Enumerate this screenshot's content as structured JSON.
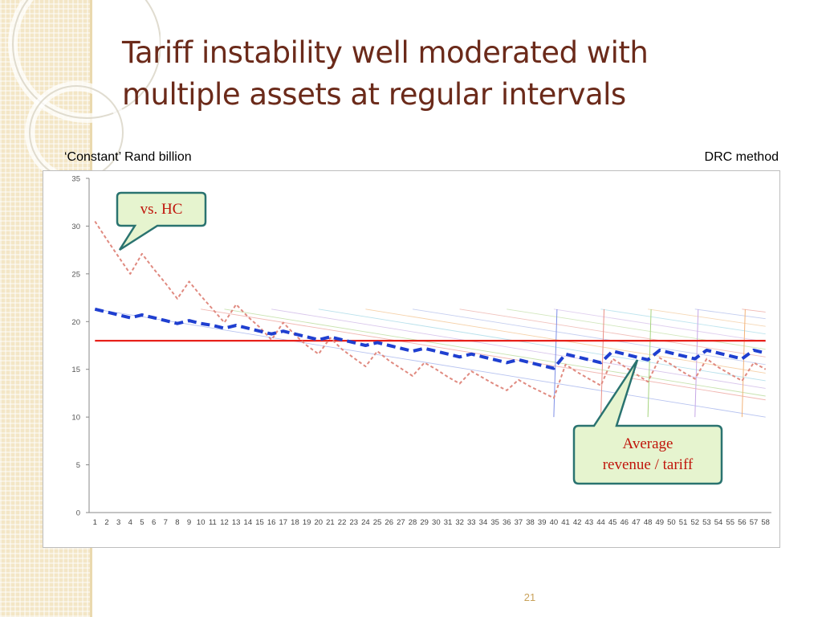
{
  "slide": {
    "title_line1": "Tariff instability well moderated with",
    "title_line2": "multiple assets at regular intervals",
    "units_label": "‘Constant’ Rand billion",
    "method_label": "DRC method",
    "page_number": "21"
  },
  "callouts": {
    "hc_label": "vs. HC",
    "average_line1": "Average",
    "average_line2": "revenue / tariff"
  },
  "colors": {
    "title": "#6b2a1a",
    "hc_series": "#e08a80",
    "drc_average_series": "#1f3fd0",
    "flat_tariff": "#e8211b",
    "callout_fill": "#e6f4cf",
    "callout_border": "#2a7370"
  },
  "chart_data": {
    "type": "line",
    "categories": [
      1,
      2,
      3,
      4,
      5,
      6,
      7,
      8,
      9,
      10,
      11,
      12,
      13,
      14,
      15,
      16,
      17,
      18,
      19,
      20,
      21,
      22,
      23,
      24,
      25,
      26,
      27,
      28,
      29,
      30,
      31,
      32,
      33,
      34,
      35,
      36,
      37,
      38,
      39,
      40,
      41,
      42,
      43,
      44,
      45,
      46,
      47,
      48,
      49,
      50,
      51,
      52,
      53,
      54,
      55,
      56,
      57,
      58
    ],
    "ylim": [
      0,
      35
    ],
    "yticks": [
      0,
      5,
      10,
      15,
      20,
      25,
      30,
      35
    ],
    "grid": false,
    "title": "",
    "xlabel": "",
    "ylabel": "",
    "series": [
      {
        "role": "hc",
        "style": "dashed",
        "values": [
          30.5,
          28.6,
          26.8,
          25.0,
          27.1,
          25.5,
          24.0,
          22.4,
          24.2,
          22.7,
          21.3,
          19.9,
          21.8,
          20.5,
          19.4,
          18.1,
          19.9,
          18.6,
          17.5,
          16.6,
          18.3,
          17.1,
          16.2,
          15.3,
          16.9,
          15.9,
          15.1,
          14.3,
          15.7,
          15.0,
          14.2,
          13.5,
          14.8,
          14.1,
          13.4,
          12.8,
          13.9,
          13.2,
          12.6,
          12.0,
          15.5,
          14.7,
          14.0,
          13.3,
          16.1,
          15.3,
          14.5,
          13.7,
          16.2,
          15.5,
          14.7,
          14.0,
          16.1,
          15.2,
          14.5,
          13.8,
          15.7,
          15.0
        ]
      },
      {
        "role": "drc_average",
        "style": "dashed_bold",
        "values": [
          21.3,
          21.0,
          20.7,
          20.4,
          20.7,
          20.4,
          20.1,
          19.8,
          20.1,
          19.8,
          19.6,
          19.3,
          19.6,
          19.3,
          19.0,
          18.7,
          19.0,
          18.7,
          18.4,
          18.1,
          18.4,
          18.1,
          17.8,
          17.5,
          17.8,
          17.5,
          17.2,
          16.9,
          17.2,
          16.9,
          16.6,
          16.3,
          16.6,
          16.3,
          16.0,
          15.7,
          16.0,
          15.7,
          15.4,
          15.1,
          16.6,
          16.3,
          16.0,
          15.7,
          16.9,
          16.6,
          16.3,
          16.0,
          17.0,
          16.7,
          16.4,
          16.1,
          17.0,
          16.7,
          16.4,
          16.1,
          17.0,
          16.7
        ]
      },
      {
        "role": "flat_tariff",
        "style": "solid",
        "values": [
          18,
          18,
          18,
          18,
          18,
          18,
          18,
          18,
          18,
          18,
          18,
          18,
          18,
          18,
          18,
          18,
          18,
          18,
          18,
          18,
          18,
          18,
          18,
          18,
          18,
          18,
          18,
          18,
          18,
          18,
          18,
          18,
          18,
          18,
          18,
          18,
          18,
          18,
          18,
          18,
          18,
          18,
          18,
          18,
          18,
          18,
          18,
          18,
          18,
          18,
          18,
          18,
          18,
          18,
          18,
          18,
          18,
          18
        ]
      }
    ],
    "asset_lines": [
      {
        "start": 1,
        "end": 58,
        "from": 21.3,
        "to": 10.0,
        "color": "#b7c3f0"
      },
      {
        "start": 10,
        "end": 58,
        "from": 21.3,
        "to": 11.8,
        "color": "#f1b7b2"
      },
      {
        "start": 12,
        "end": 58,
        "from": 21.3,
        "to": 12.2,
        "color": "#c9e3b0"
      },
      {
        "start": 16,
        "end": 58,
        "from": 21.3,
        "to": 13.0,
        "color": "#d9c7ec"
      },
      {
        "start": 20,
        "end": 58,
        "from": 21.3,
        "to": 13.8,
        "color": "#b9e1ec"
      },
      {
        "start": 24,
        "end": 58,
        "from": 21.3,
        "to": 14.6,
        "color": "#f6d2aa"
      },
      {
        "start": 28,
        "end": 58,
        "from": 21.3,
        "to": 15.5,
        "color": "#c6cff0"
      },
      {
        "start": 32,
        "end": 58,
        "from": 21.3,
        "to": 16.3,
        "color": "#f1c2bd"
      },
      {
        "start": 36,
        "end": 58,
        "from": 21.3,
        "to": 17.1,
        "color": "#d2e7be"
      },
      {
        "start": 40,
        "end": 58,
        "from": 21.3,
        "to": 17.9,
        "color": "#e0d0ef"
      },
      {
        "start": 44,
        "end": 58,
        "from": 21.3,
        "to": 18.7,
        "color": "#bfe5ef"
      },
      {
        "start": 48,
        "end": 58,
        "from": 21.3,
        "to": 19.5,
        "color": "#f6d8b6"
      },
      {
        "start": 52,
        "end": 58,
        "from": 21.3,
        "to": 20.3,
        "color": "#c3cdf0"
      },
      {
        "start": 56,
        "end": 58,
        "from": 21.3,
        "to": 21.0,
        "color": "#f0b8b3"
      }
    ],
    "asset_resets": [
      {
        "at": 40,
        "from": 10,
        "to": 21.3,
        "color": "#7e8fe6"
      },
      {
        "at": 44,
        "from": 10,
        "to": 21.3,
        "color": "#e98f87"
      },
      {
        "at": 48,
        "from": 10,
        "to": 21.3,
        "color": "#a6d47f"
      },
      {
        "at": 52,
        "from": 10,
        "to": 21.3,
        "color": "#c6a8e6"
      },
      {
        "at": 56,
        "from": 10,
        "to": 21.3,
        "color": "#f2b37a"
      }
    ]
  }
}
